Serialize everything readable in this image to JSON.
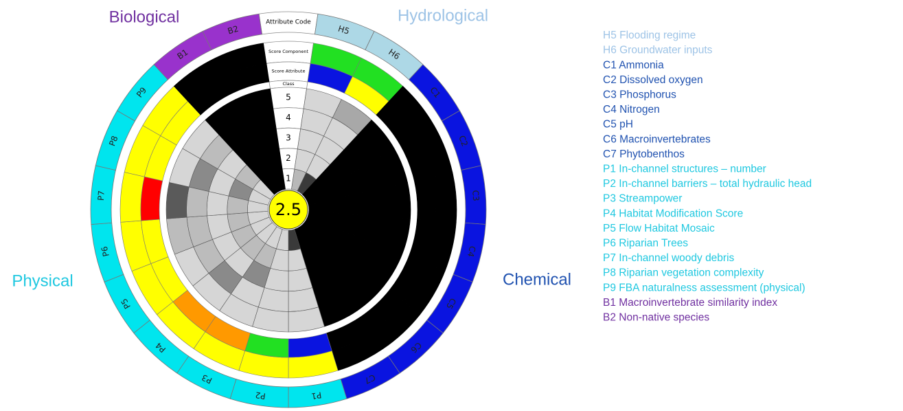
{
  "group_labels": [
    {
      "text": "Biological",
      "color": "#7030a0",
      "x": 0
    },
    {
      "text": "Hydrological",
      "color": "#9dc3e6",
      "x": 1
    },
    {
      "text": "Physical",
      "color": "#1fc8e0",
      "x": 2
    },
    {
      "text": "Chemical",
      "color": "#2052b0",
      "x": 3
    }
  ],
  "header": {
    "attribute_code": "Attribute Code",
    "score_component": "Score Component",
    "score_attribute": "Score Attribute",
    "class": "Class",
    "class_levels": [
      "5",
      "4",
      "3",
      "2",
      "1"
    ]
  },
  "overall_score": "2.5",
  "segments": [
    {
      "code": "H5",
      "ring": "#add8e6",
      "component": "#22e022",
      "attribute": "#0a14e0",
      "cells": [
        "#b8b8b8",
        "#d6d6d6",
        "#d6d6d6",
        "#d6d6d6",
        "#d6d6d6"
      ]
    },
    {
      "code": "H6",
      "ring": "#add8e6",
      "component": "#22e022",
      "attribute": "#ffff00",
      "cells": [
        "#3a3a3a",
        "#d6d6d6",
        "#d6d6d6",
        "#d6d6d6",
        "#a8a8a8"
      ]
    },
    {
      "code": "C1",
      "ring": "#0a14e0",
      "component": "#000000",
      "attribute": "#000000",
      "cells": null
    },
    {
      "code": "C2",
      "ring": "#0a14e0",
      "component": "#000000",
      "attribute": "#000000",
      "cells": null
    },
    {
      "code": "C3",
      "ring": "#0a14e0",
      "component": "#000000",
      "attribute": "#000000",
      "cells": null
    },
    {
      "code": "C4",
      "ring": "#0a14e0",
      "component": "#000000",
      "attribute": "#000000",
      "cells": null
    },
    {
      "code": "C5",
      "ring": "#0a14e0",
      "component": "#000000",
      "attribute": "#000000",
      "cells": null
    },
    {
      "code": "C6",
      "ring": "#0a14e0",
      "component": "#000000",
      "attribute": "#000000",
      "cells": null
    },
    {
      "code": "C7",
      "ring": "#0a14e0",
      "component": "#000000",
      "attribute": "#000000",
      "cells": null
    },
    {
      "code": "P1",
      "ring": "#00e5ee",
      "component": "#ffff00",
      "attribute": "#0a14e0",
      "cells": [
        "#3a3a3a",
        "#d6d6d6",
        "#d6d6d6",
        "#d6d6d6",
        "#d6d6d6"
      ]
    },
    {
      "code": "P2",
      "ring": "#00e5ee",
      "component": "#ffff00",
      "attribute": "#22e022",
      "cells": [
        "#d6d6d6",
        "#d6d6d6",
        "#d6d6d6",
        "#d6d6d6",
        "#d6d6d6"
      ]
    },
    {
      "code": "P3",
      "ring": "#00e5ee",
      "component": "#ffff00",
      "attribute": "#ff9900",
      "cells": [
        "#d6d6d6",
        "#bcbcbc",
        "#8a8a8a",
        "#d6d6d6",
        "#d6d6d6"
      ]
    },
    {
      "code": "P4",
      "ring": "#00e5ee",
      "component": "#ffff00",
      "attribute": "#ff9900",
      "cells": [
        "#d6d6d6",
        "#bcbcbc",
        "#d6d6d6",
        "#8a8a8a",
        "#d6d6d6"
      ]
    },
    {
      "code": "P5",
      "ring": "#00e5ee",
      "component": "#ffff00",
      "attribute": "#ffff00",
      "cells": [
        "#d6d6d6",
        "#bcbcbc",
        "#d6d6d6",
        "#bcbcbc",
        "#d6d6d6"
      ]
    },
    {
      "code": "P6",
      "ring": "#00e5ee",
      "component": "#ffff00",
      "attribute": "#ffff00",
      "cells": [
        "#d6d6d6",
        "#bcbcbc",
        "#d6d6d6",
        "#bcbcbc",
        "#bcbcbc"
      ]
    },
    {
      "code": "P7",
      "ring": "#00e5ee",
      "component": "#ffff00",
      "attribute": "#ff0000",
      "cells": [
        "#d6d6d6",
        "#bcbcbc",
        "#d6d6d6",
        "#bcbcbc",
        "#5a5a5a"
      ]
    },
    {
      "code": "P8",
      "ring": "#00e5ee",
      "component": "#ffff00",
      "attribute": "#ffff00",
      "cells": [
        "#d6d6d6",
        "#8a8a8a",
        "#d6d6d6",
        "#8a8a8a",
        "#d6d6d6"
      ]
    },
    {
      "code": "P9",
      "ring": "#00e5ee",
      "component": "#ffff00",
      "attribute": "#ffff00",
      "cells": [
        "#d6d6d6",
        "#bcbcbc",
        "#d6d6d6",
        "#bcbcbc",
        "#d6d6d6"
      ]
    },
    {
      "code": "B1",
      "ring": "#9932cc",
      "component": "#000000",
      "attribute": "#000000",
      "cells": null
    },
    {
      "code": "B2",
      "ring": "#9932cc",
      "component": "#000000",
      "attribute": "#000000",
      "cells": null
    }
  ],
  "legend": [
    {
      "text": "H5 Flooding regime",
      "color": "#9dc3e6"
    },
    {
      "text": "H6 Groundwater inputs",
      "color": "#9dc3e6"
    },
    {
      "text": "C1 Ammonia",
      "color": "#2052b0"
    },
    {
      "text": "C2 Dissolved oxygen",
      "color": "#2052b0"
    },
    {
      "text": "C3 Phosphorus",
      "color": "#2052b0"
    },
    {
      "text": "C4 Nitrogen",
      "color": "#2052b0"
    },
    {
      "text": "C5 pH",
      "color": "#2052b0"
    },
    {
      "text": "C6 Macroinvertebrates",
      "color": "#2052b0"
    },
    {
      "text": "C7 Phytobenthos",
      "color": "#2052b0"
    },
    {
      "text": "P1 In-channel structures – number",
      "color": "#1fc8e0"
    },
    {
      "text": "P2 In-channel barriers – total hydraulic head",
      "color": "#1fc8e0"
    },
    {
      "text": "P3 Streampower",
      "color": "#1fc8e0"
    },
    {
      "text": "P4 Habitat Modification Score",
      "color": "#1fc8e0"
    },
    {
      "text": "P5 Flow Habitat Mosaic",
      "color": "#1fc8e0"
    },
    {
      "text": "P6 Riparian Trees",
      "color": "#1fc8e0"
    },
    {
      "text": "P7 In-channel woody debris",
      "color": "#1fc8e0"
    },
    {
      "text": "P8 Riparian vegetation complexity",
      "color": "#1fc8e0"
    },
    {
      "text": "P9 FBA naturalness assessment (physical)",
      "color": "#1fc8e0"
    },
    {
      "text": "B1 Macroinvertebrate similarity index",
      "color": "#7030a0"
    },
    {
      "text": "B2 Non-native species",
      "color": "#7030a0"
    }
  ]
}
